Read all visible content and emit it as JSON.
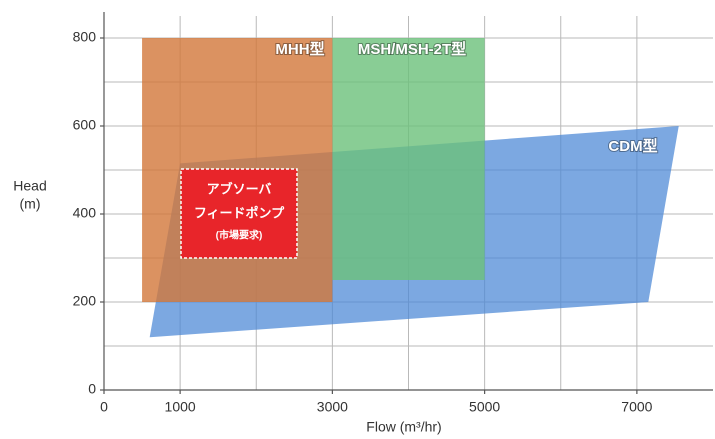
{
  "chart_data": {
    "type": "region",
    "x_label": "Flow (m³/hr)",
    "y_label_lines": [
      "Head",
      "(m)"
    ],
    "xlim": [
      0,
      8000
    ],
    "ylim": [
      0,
      850
    ],
    "xticks": [
      0,
      1000,
      3000,
      5000,
      7000
    ],
    "yticks": [
      0,
      200,
      400,
      600,
      800
    ],
    "xgrid": [
      1000,
      2000,
      3000,
      4000,
      5000,
      6000,
      7000
    ],
    "ygrid": [
      100,
      200,
      300,
      400,
      500,
      600,
      700,
      800
    ],
    "regions": [
      {
        "name": "CDM型",
        "color": "#4a87d6",
        "x": [
          600,
          1000,
          7550,
          7150
        ],
        "y": [
          120,
          515,
          600,
          200
        ]
      },
      {
        "name": "MSH/MSH-2T型",
        "color": "#6cc07a",
        "x": [
          3000,
          5000,
          5000,
          3000
        ],
        "y": [
          800,
          800,
          250,
          250
        ]
      },
      {
        "name": "MHH型",
        "color": "#d2773a",
        "x": [
          500,
          3000,
          3000,
          500
        ],
        "y": [
          800,
          800,
          200,
          200
        ]
      }
    ],
    "annotation": {
      "lines": [
        "アブソーバ",
        "フィードポンプ",
        "(市場要求)"
      ],
      "color": "#e8252a"
    }
  }
}
